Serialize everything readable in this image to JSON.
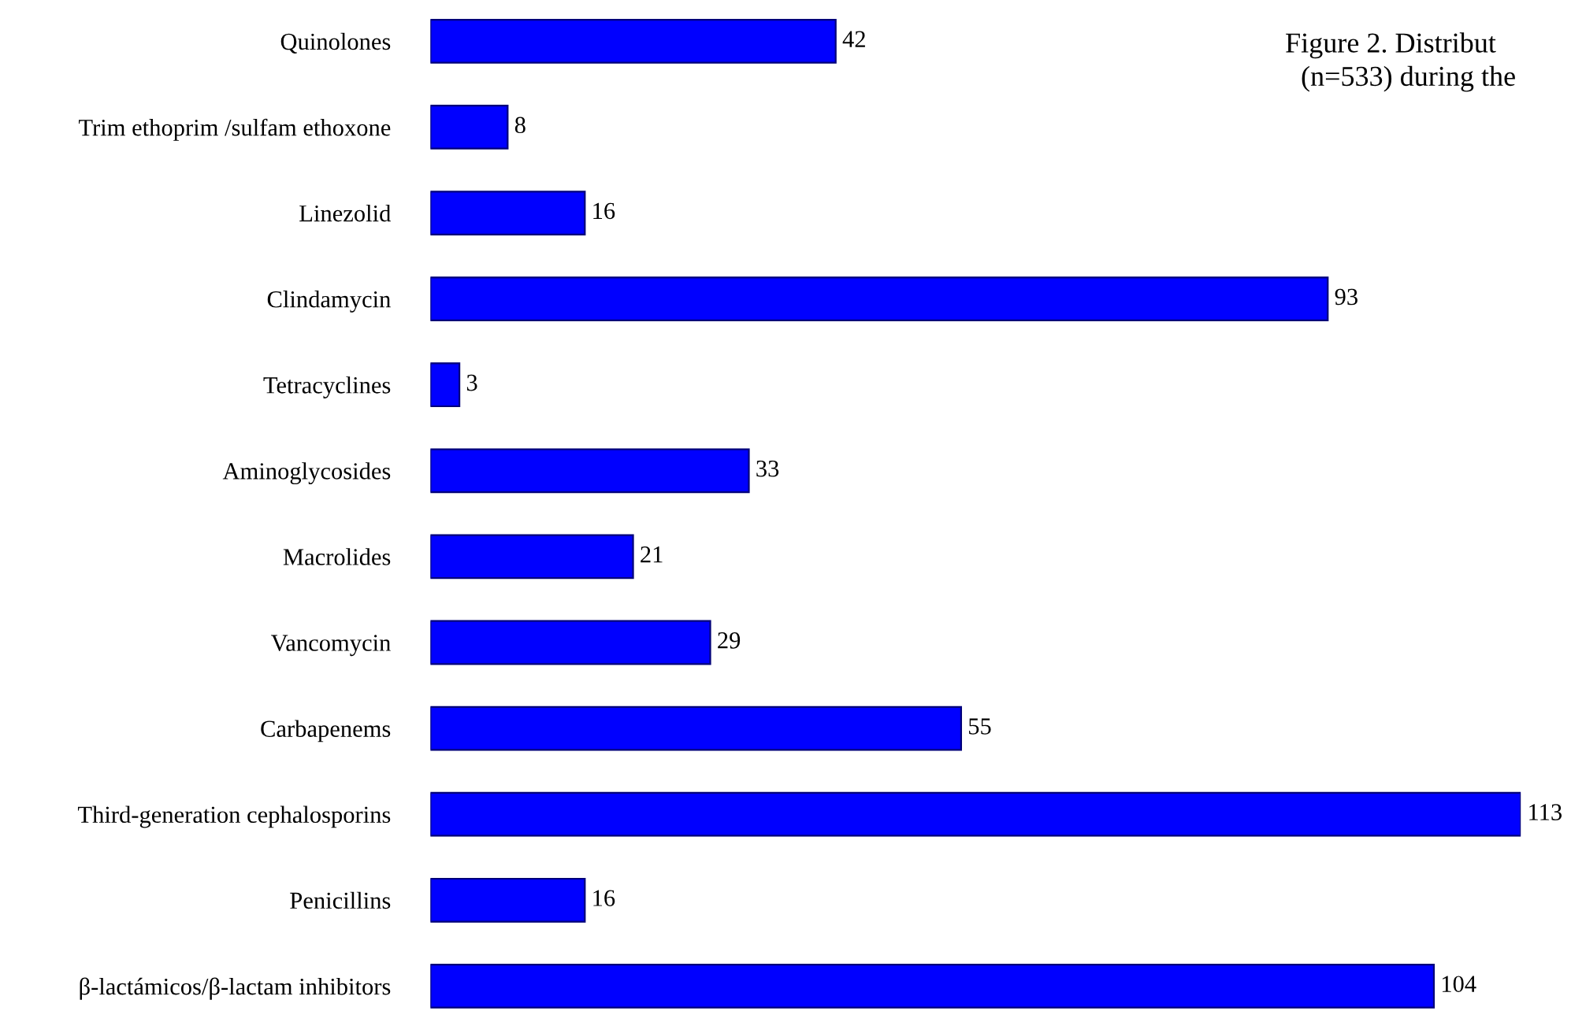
{
  "chart_data": {
    "type": "bar",
    "orientation": "horizontal",
    "categories": [
      "Quinolones",
      "Trim ethoprim /sulfam ethoxone",
      "Linezolid",
      "Clindamycin",
      "Tetracyclines",
      "Aminoglycosides",
      "Macrolides",
      "Vancomycin",
      "Carbapenems",
      "Third-generation cephalosporins",
      "Penicillins",
      "β-lactámicos/β-lactam inhibitors"
    ],
    "values": [
      42,
      8,
      16,
      93,
      3,
      33,
      21,
      29,
      55,
      113,
      16,
      104
    ],
    "color": "#0000ff",
    "data_labels": true,
    "grid": false,
    "legend": false,
    "annotations": [
      "Figure 2. Distribut",
      "(n=533) during the"
    ]
  }
}
